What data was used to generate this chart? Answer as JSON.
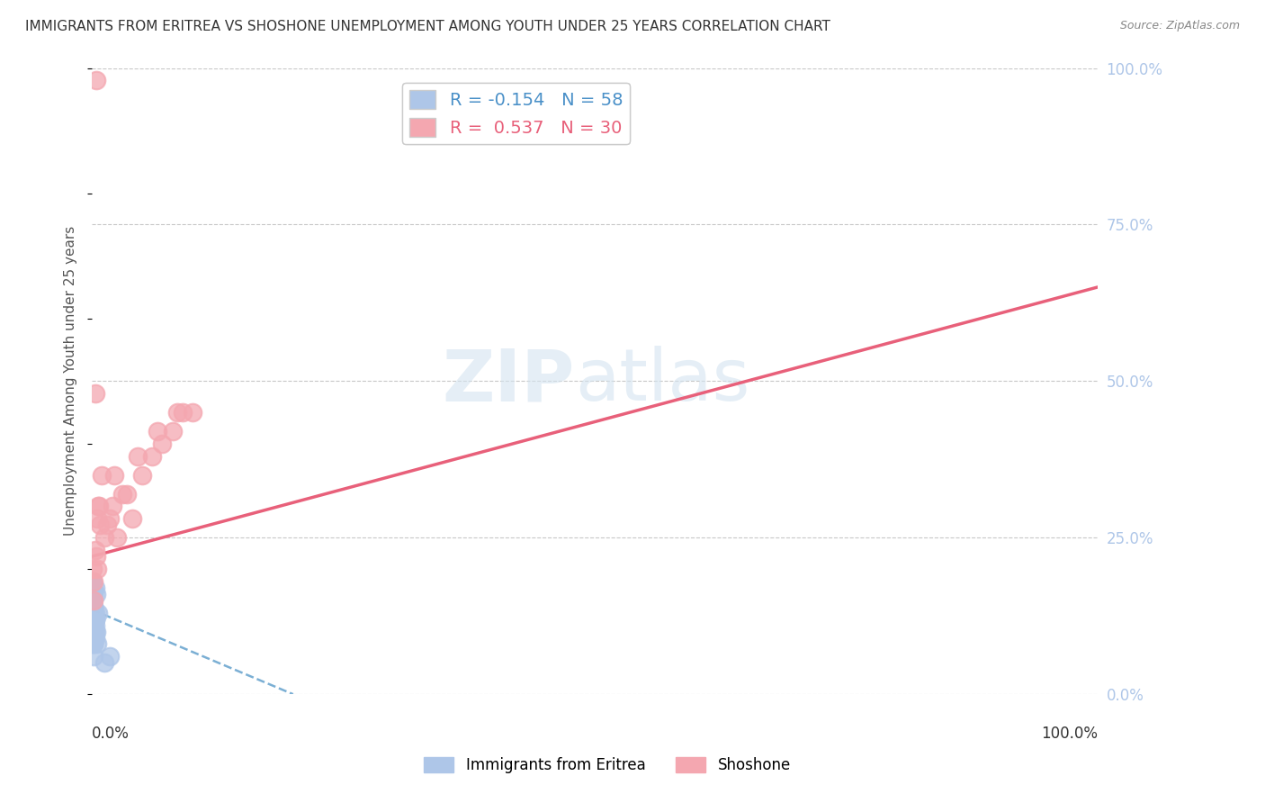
{
  "title": "IMMIGRANTS FROM ERITREA VS SHOSHONE UNEMPLOYMENT AMONG YOUTH UNDER 25 YEARS CORRELATION CHART",
  "source": "Source: ZipAtlas.com",
  "ylabel": "Unemployment Among Youth under 25 years",
  "r_eritrea": -0.154,
  "n_eritrea": 58,
  "r_shoshone": 0.537,
  "n_shoshone": 30,
  "color_eritrea": "#aec6e8",
  "color_shoshone": "#f4a7b0",
  "trendline_eritrea_color": "#7bafd4",
  "trendline_shoshone_color": "#e8607a",
  "background_color": "#ffffff",
  "grid_color": "#c8c8c8",
  "title_color": "#333333",
  "axis_label_color": "#555555",
  "right_axis_color": "#aec6e8",
  "legend_label_eritrea": "Immigrants from Eritrea",
  "legend_label_shoshone": "Shoshone",
  "eritrea_x": [
    0.1,
    0.2,
    0.3,
    0.1,
    0.2,
    0.1,
    0.05,
    0.1,
    0.2,
    0.1,
    0.3,
    0.2,
    0.15,
    0.1,
    0.3,
    0.2,
    0.1,
    0.4,
    0.2,
    0.1,
    0.1,
    0.15,
    0.2,
    0.1,
    0.3,
    0.1,
    0.2,
    0.05,
    0.1,
    0.3,
    0.1,
    0.2,
    0.1,
    0.4,
    0.2,
    0.1,
    0.5,
    0.3,
    0.1,
    0.2,
    0.1,
    0.1,
    0.2,
    0.3,
    0.1,
    0.1,
    0.05,
    0.2,
    0.1,
    0.2,
    0.1,
    0.6,
    0.3,
    0.1,
    0.2,
    0.1,
    1.8,
    1.2
  ],
  "eritrea_y": [
    15.0,
    10.0,
    12.0,
    18.0,
    9.0,
    14.0,
    16.0,
    11.0,
    8.0,
    13.0,
    17.0,
    10.0,
    14.0,
    12.0,
    9.0,
    11.0,
    13.0,
    16.0,
    8.0,
    10.0,
    15.0,
    12.0,
    14.0,
    9.0,
    11.0,
    13.0,
    16.0,
    10.0,
    18.0,
    12.0,
    14.0,
    9.0,
    11.0,
    10.0,
    13.0,
    15.0,
    8.0,
    12.0,
    14.0,
    10.0,
    16.0,
    11.0,
    9.0,
    13.0,
    15.0,
    10.0,
    12.0,
    14.0,
    17.0,
    9.0,
    11.0,
    13.0,
    10.0,
    12.0,
    6.0,
    8.0,
    6.0,
    5.0
  ],
  "shoshone_x": [
    0.1,
    0.3,
    0.5,
    0.2,
    0.4,
    0.8,
    0.6,
    1.0,
    1.5,
    2.0,
    2.5,
    3.0,
    4.0,
    5.0,
    6.0,
    7.0,
    8.0,
    9.0,
    10.0,
    0.2,
    0.3,
    0.5,
    0.7,
    1.2,
    1.8,
    2.2,
    3.5,
    4.5,
    6.5,
    8.5
  ],
  "shoshone_y": [
    20.0,
    23.0,
    28.0,
    18.0,
    22.0,
    27.0,
    30.0,
    35.0,
    27.0,
    30.0,
    25.0,
    32.0,
    28.0,
    35.0,
    38.0,
    40.0,
    42.0,
    45.0,
    45.0,
    15.0,
    48.0,
    20.0,
    30.0,
    25.0,
    28.0,
    35.0,
    32.0,
    38.0,
    42.0,
    45.0
  ],
  "shoshone_outlier_x": 0.4,
  "shoshone_outlier_y": 98.0,
  "shoshone_trendline_x0": 0.0,
  "shoshone_trendline_y0": 22.0,
  "shoshone_trendline_x1": 100.0,
  "shoshone_trendline_y1": 65.0,
  "eritrea_trendline_x0": 0.0,
  "eritrea_trendline_y0": 13.5,
  "eritrea_trendline_x1": 20.0,
  "eritrea_trendline_y1": 0.0,
  "yticks": [
    0.0,
    25.0,
    50.0,
    75.0,
    100.0
  ],
  "ytick_labels": [
    "0.0%",
    "25.0%",
    "50.0%",
    "75.0%",
    "100.0%"
  ],
  "xmin": 0.0,
  "xmax": 100.0,
  "ymin": 0.0,
  "ymax": 100.0
}
